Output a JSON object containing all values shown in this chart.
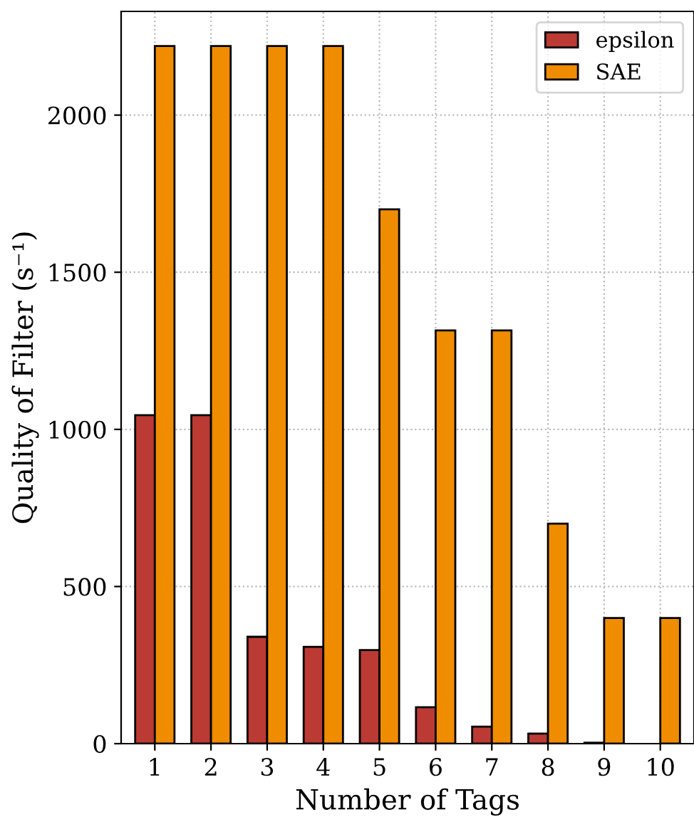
{
  "chart_data": {
    "type": "bar",
    "xlabel": "Number of Tags",
    "ylabel": "Quality of Filter (s⁻¹)",
    "categories": [
      "1",
      "2",
      "3",
      "4",
      "5",
      "6",
      "7",
      "8",
      "9",
      "10"
    ],
    "series": [
      {
        "name": "epsilon",
        "color": "#bb3a33",
        "values": [
          1045,
          1045,
          340,
          308,
          298,
          116,
          54,
          32,
          3,
          null
        ]
      },
      {
        "name": "SAE",
        "color": "#f08c00",
        "values": [
          2220,
          2220,
          2220,
          2220,
          1700,
          1315,
          1315,
          700,
          400,
          400
        ]
      }
    ],
    "ylim": [
      0,
      2330
    ],
    "yticks": [
      0,
      500,
      1000,
      1500,
      2000
    ],
    "grid": true,
    "legend": "top right"
  }
}
